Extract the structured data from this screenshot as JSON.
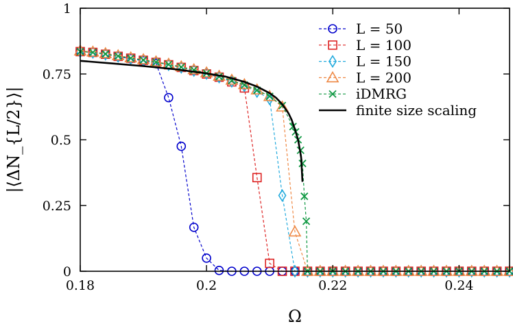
{
  "chart_data": {
    "type": "line",
    "xlabel": "Ω",
    "ylabel": "|⟨ΔN_{L/2}⟩|",
    "xlim": [
      0.18,
      0.248
    ],
    "ylim": [
      0,
      1
    ],
    "x_ticks": [
      {
        "value": 0.18,
        "label": "0.18"
      },
      {
        "value": 0.2,
        "label": "0.2"
      },
      {
        "value": 0.22,
        "label": "0.22"
      },
      {
        "value": 0.24,
        "label": "0.24"
      }
    ],
    "y_ticks": [
      {
        "value": 0,
        "label": "0"
      },
      {
        "value": 0.25,
        "label": "0.25"
      },
      {
        "value": 0.5,
        "label": "0.5"
      },
      {
        "value": 0.75,
        "label": "0.75"
      },
      {
        "value": 1,
        "label": "1"
      }
    ],
    "grid": false,
    "legend_position": "top-right",
    "series": [
      {
        "name": "L = 50",
        "color": "#0000cc",
        "marker": "circle",
        "line": "dashed",
        "points": [
          [
            0.18,
            0.835
          ],
          [
            0.182,
            0.832
          ],
          [
            0.184,
            0.825
          ],
          [
            0.186,
            0.816
          ],
          [
            0.188,
            0.808
          ],
          [
            0.19,
            0.8
          ],
          [
            0.192,
            0.79
          ],
          [
            0.194,
            0.66
          ],
          [
            0.196,
            0.475
          ],
          [
            0.198,
            0.167
          ],
          [
            0.2,
            0.05
          ],
          [
            0.202,
            0.003
          ],
          [
            0.204,
            0.0
          ],
          [
            0.206,
            0.0
          ],
          [
            0.208,
            0.0
          ],
          [
            0.21,
            0.0
          ],
          [
            0.212,
            0.0
          ],
          [
            0.214,
            0.0
          ],
          [
            0.216,
            0.0
          ],
          [
            0.218,
            0.0
          ],
          [
            0.22,
            0.0
          ],
          [
            0.222,
            0.0
          ],
          [
            0.224,
            0.0
          ],
          [
            0.226,
            0.0
          ],
          [
            0.228,
            0.0
          ],
          [
            0.23,
            0.0
          ],
          [
            0.232,
            0.0
          ],
          [
            0.234,
            0.0
          ],
          [
            0.236,
            0.0
          ],
          [
            0.238,
            0.0
          ],
          [
            0.24,
            0.0
          ],
          [
            0.242,
            0.0
          ],
          [
            0.244,
            0.0
          ],
          [
            0.246,
            0.0
          ],
          [
            0.248,
            0.0
          ]
        ]
      },
      {
        "name": "L = 100",
        "color": "#dd2222",
        "marker": "square",
        "line": "dashed",
        "points": [
          [
            0.18,
            0.835
          ],
          [
            0.182,
            0.832
          ],
          [
            0.184,
            0.825
          ],
          [
            0.186,
            0.817
          ],
          [
            0.188,
            0.81
          ],
          [
            0.19,
            0.802
          ],
          [
            0.192,
            0.794
          ],
          [
            0.194,
            0.785
          ],
          [
            0.196,
            0.775
          ],
          [
            0.198,
            0.763
          ],
          [
            0.2,
            0.75
          ],
          [
            0.202,
            0.738
          ],
          [
            0.204,
            0.72
          ],
          [
            0.206,
            0.697
          ],
          [
            0.208,
            0.356
          ],
          [
            0.21,
            0.03
          ],
          [
            0.212,
            0.0
          ],
          [
            0.214,
            0.0
          ],
          [
            0.216,
            0.0
          ],
          [
            0.218,
            0.0
          ],
          [
            0.22,
            0.0
          ],
          [
            0.222,
            0.0
          ],
          [
            0.224,
            0.0
          ],
          [
            0.226,
            0.0
          ],
          [
            0.228,
            0.0
          ],
          [
            0.23,
            0.0
          ],
          [
            0.232,
            0.0
          ],
          [
            0.234,
            0.0
          ],
          [
            0.236,
            0.0
          ],
          [
            0.238,
            0.0
          ],
          [
            0.24,
            0.0
          ],
          [
            0.242,
            0.0
          ],
          [
            0.244,
            0.0
          ],
          [
            0.246,
            0.0
          ],
          [
            0.248,
            0.0
          ]
        ]
      },
      {
        "name": "L = 150",
        "color": "#22aadd",
        "marker": "diamond",
        "line": "dashed",
        "points": [
          [
            0.18,
            0.835
          ],
          [
            0.182,
            0.832
          ],
          [
            0.184,
            0.825
          ],
          [
            0.186,
            0.817
          ],
          [
            0.188,
            0.81
          ],
          [
            0.19,
            0.802
          ],
          [
            0.192,
            0.794
          ],
          [
            0.194,
            0.785
          ],
          [
            0.196,
            0.775
          ],
          [
            0.198,
            0.763
          ],
          [
            0.2,
            0.752
          ],
          [
            0.202,
            0.738
          ],
          [
            0.204,
            0.722
          ],
          [
            0.206,
            0.705
          ],
          [
            0.208,
            0.683
          ],
          [
            0.21,
            0.655
          ],
          [
            0.212,
            0.288
          ],
          [
            0.214,
            0.0
          ],
          [
            0.216,
            0.0
          ],
          [
            0.218,
            0.0
          ],
          [
            0.22,
            0.0
          ],
          [
            0.222,
            0.0
          ],
          [
            0.224,
            0.0
          ],
          [
            0.226,
            0.0
          ],
          [
            0.228,
            0.0
          ],
          [
            0.23,
            0.0
          ],
          [
            0.232,
            0.0
          ],
          [
            0.234,
            0.0
          ],
          [
            0.236,
            0.0
          ],
          [
            0.238,
            0.0
          ],
          [
            0.24,
            0.0
          ],
          [
            0.242,
            0.0
          ],
          [
            0.244,
            0.0
          ],
          [
            0.246,
            0.0
          ],
          [
            0.248,
            0.0
          ]
        ]
      },
      {
        "name": "L = 200",
        "color": "#ee8844",
        "marker": "triangle",
        "line": "dashed",
        "points": [
          [
            0.18,
            0.838
          ],
          [
            0.182,
            0.834
          ],
          [
            0.184,
            0.828
          ],
          [
            0.186,
            0.82
          ],
          [
            0.188,
            0.812
          ],
          [
            0.19,
            0.805
          ],
          [
            0.192,
            0.797
          ],
          [
            0.194,
            0.788
          ],
          [
            0.196,
            0.778
          ],
          [
            0.198,
            0.767
          ],
          [
            0.2,
            0.755
          ],
          [
            0.202,
            0.742
          ],
          [
            0.204,
            0.727
          ],
          [
            0.206,
            0.71
          ],
          [
            0.208,
            0.69
          ],
          [
            0.21,
            0.665
          ],
          [
            0.212,
            0.625
          ],
          [
            0.214,
            0.15
          ],
          [
            0.216,
            0.0
          ],
          [
            0.218,
            0.0
          ],
          [
            0.22,
            0.0
          ],
          [
            0.222,
            0.0
          ],
          [
            0.224,
            0.0
          ],
          [
            0.226,
            0.0
          ],
          [
            0.228,
            0.0
          ],
          [
            0.23,
            0.0
          ],
          [
            0.232,
            0.0
          ],
          [
            0.234,
            0.0
          ],
          [
            0.236,
            0.0
          ],
          [
            0.238,
            0.0
          ],
          [
            0.24,
            0.0
          ],
          [
            0.242,
            0.0
          ],
          [
            0.244,
            0.0
          ],
          [
            0.246,
            0.0
          ],
          [
            0.248,
            0.0
          ]
        ]
      },
      {
        "name": "iDMRG",
        "color": "#119944",
        "marker": "cross",
        "line": "dashed",
        "points": [
          [
            0.18,
            0.835
          ],
          [
            0.182,
            0.832
          ],
          [
            0.184,
            0.826
          ],
          [
            0.186,
            0.818
          ],
          [
            0.188,
            0.81
          ],
          [
            0.19,
            0.803
          ],
          [
            0.192,
            0.795
          ],
          [
            0.194,
            0.786
          ],
          [
            0.196,
            0.776
          ],
          [
            0.198,
            0.765
          ],
          [
            0.2,
            0.753
          ],
          [
            0.202,
            0.74
          ],
          [
            0.204,
            0.725
          ],
          [
            0.206,
            0.708
          ],
          [
            0.208,
            0.688
          ],
          [
            0.21,
            0.665
          ],
          [
            0.212,
            0.63
          ],
          [
            0.2137,
            0.55
          ],
          [
            0.2141,
            0.53
          ],
          [
            0.2145,
            0.5
          ],
          [
            0.2149,
            0.46
          ],
          [
            0.2152,
            0.41
          ],
          [
            0.2155,
            0.285
          ],
          [
            0.2158,
            0.19
          ],
          [
            0.216,
            0.0
          ],
          [
            0.218,
            0.0
          ],
          [
            0.22,
            0.0
          ],
          [
            0.222,
            0.0
          ],
          [
            0.224,
            0.0
          ],
          [
            0.226,
            0.0
          ],
          [
            0.228,
            0.0
          ],
          [
            0.23,
            0.0
          ],
          [
            0.232,
            0.0
          ],
          [
            0.234,
            0.0
          ],
          [
            0.236,
            0.0
          ],
          [
            0.238,
            0.0
          ],
          [
            0.24,
            0.0
          ],
          [
            0.242,
            0.0
          ],
          [
            0.244,
            0.0
          ],
          [
            0.246,
            0.0
          ],
          [
            0.248,
            0.0
          ]
        ]
      },
      {
        "name": "finite size scaling",
        "color": "#000000",
        "marker": "none",
        "line": "solid",
        "points": [
          [
            0.18,
            0.8
          ],
          [
            0.185,
            0.79
          ],
          [
            0.19,
            0.78
          ],
          [
            0.195,
            0.768
          ],
          [
            0.2,
            0.752
          ],
          [
            0.203,
            0.74
          ],
          [
            0.206,
            0.72
          ],
          [
            0.208,
            0.702
          ],
          [
            0.21,
            0.677
          ],
          [
            0.211,
            0.66
          ],
          [
            0.212,
            0.635
          ],
          [
            0.213,
            0.6
          ],
          [
            0.2135,
            0.575
          ],
          [
            0.214,
            0.54
          ],
          [
            0.2145,
            0.5
          ],
          [
            0.2148,
            0.46
          ],
          [
            0.215,
            0.43
          ],
          [
            0.2152,
            0.34
          ]
        ]
      }
    ]
  }
}
